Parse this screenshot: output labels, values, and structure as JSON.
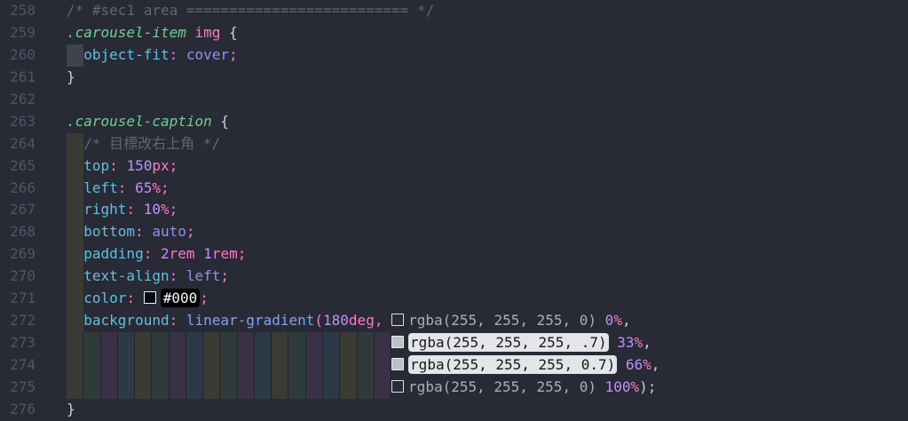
{
  "editor": {
    "rainbow_stripe_count": 19,
    "lines": [
      {
        "no": "258",
        "tokens": [
          {
            "t": "/* #sec1 area ========================== */",
            "c": "cm"
          }
        ]
      },
      {
        "no": "259",
        "tokens": [
          {
            "t": ".carousel-item",
            "c": "sel"
          },
          {
            "t": " "
          },
          {
            "t": "img",
            "c": "tag"
          },
          {
            "t": " "
          },
          {
            "t": "{",
            "c": "fg"
          }
        ]
      },
      {
        "no": "260",
        "bg": "tab",
        "tokens": [
          {
            "t": "  "
          },
          {
            "t": "object-fit",
            "c": "prop"
          },
          {
            "t": ":",
            "c": "pp"
          },
          {
            "t": " "
          },
          {
            "t": "cover",
            "c": "val"
          },
          {
            "t": ";",
            "c": "pp"
          }
        ]
      },
      {
        "no": "261",
        "tokens": [
          {
            "t": "}",
            "c": "fg"
          }
        ]
      },
      {
        "no": "262",
        "tokens": []
      },
      {
        "no": "263",
        "tokens": [
          {
            "t": ".carousel-caption",
            "c": "sel"
          },
          {
            "t": " "
          },
          {
            "t": "{",
            "c": "fg"
          }
        ]
      },
      {
        "no": "264",
        "bg": "l1",
        "tokens": [
          {
            "t": "  "
          },
          {
            "t": "/* 目標改右上角 */",
            "c": "cm"
          }
        ]
      },
      {
        "no": "265",
        "bg": "l1",
        "tokens": [
          {
            "t": "  "
          },
          {
            "t": "top",
            "c": "prop"
          },
          {
            "t": ":",
            "c": "pp"
          },
          {
            "t": " "
          },
          {
            "t": "150",
            "c": "num"
          },
          {
            "t": "px",
            "c": "unit"
          },
          {
            "t": ";",
            "c": "pp"
          }
        ]
      },
      {
        "no": "266",
        "bg": "l1",
        "tokens": [
          {
            "t": "  "
          },
          {
            "t": "left",
            "c": "prop"
          },
          {
            "t": ":",
            "c": "pp"
          },
          {
            "t": " "
          },
          {
            "t": "65",
            "c": "num"
          },
          {
            "t": "%",
            "c": "unit"
          },
          {
            "t": ";",
            "c": "pp"
          }
        ]
      },
      {
        "no": "267",
        "bg": "l1",
        "tokens": [
          {
            "t": "  "
          },
          {
            "t": "right",
            "c": "prop"
          },
          {
            "t": ":",
            "c": "pp"
          },
          {
            "t": " "
          },
          {
            "t": "10",
            "c": "num"
          },
          {
            "t": "%",
            "c": "unit"
          },
          {
            "t": ";",
            "c": "pp"
          }
        ]
      },
      {
        "no": "268",
        "bg": "l1",
        "tokens": [
          {
            "t": "  "
          },
          {
            "t": "bottom",
            "c": "prop"
          },
          {
            "t": ":",
            "c": "pp"
          },
          {
            "t": " "
          },
          {
            "t": "auto",
            "c": "val"
          },
          {
            "t": ";",
            "c": "pp"
          }
        ]
      },
      {
        "no": "269",
        "bg": "l1",
        "tokens": [
          {
            "t": "  "
          },
          {
            "t": "padding",
            "c": "prop"
          },
          {
            "t": ":",
            "c": "pp"
          },
          {
            "t": " "
          },
          {
            "t": "2",
            "c": "num"
          },
          {
            "t": "rem",
            "c": "unit"
          },
          {
            "t": " "
          },
          {
            "t": "1",
            "c": "num"
          },
          {
            "t": "rem",
            "c": "unit"
          },
          {
            "t": ";",
            "c": "pp"
          }
        ]
      },
      {
        "no": "270",
        "bg": "l1",
        "tokens": [
          {
            "t": "  "
          },
          {
            "t": "text-align",
            "c": "prop"
          },
          {
            "t": ":",
            "c": "pp"
          },
          {
            "t": " "
          },
          {
            "t": "left",
            "c": "val"
          },
          {
            "t": ";",
            "c": "pp"
          }
        ]
      },
      {
        "no": "271",
        "bg": "l1",
        "tokens": [
          {
            "t": "  "
          },
          {
            "t": "color",
            "c": "prop"
          },
          {
            "t": ":",
            "c": "pp"
          },
          {
            "t": " "
          },
          {
            "sw": "black"
          },
          {
            "t": "#000",
            "c": "bpill"
          },
          {
            "t": ";",
            "c": "pp"
          }
        ]
      },
      {
        "no": "272",
        "bg": "l1",
        "tokens": [
          {
            "t": "  "
          },
          {
            "t": "background",
            "c": "prop"
          },
          {
            "t": ":",
            "c": "pp"
          },
          {
            "t": " "
          },
          {
            "t": "linear-gradient",
            "c": "func"
          },
          {
            "t": "(",
            "c": "pp"
          },
          {
            "t": "180",
            "c": "num"
          },
          {
            "t": "deg",
            "c": "unit"
          },
          {
            "t": ",",
            "c": "pp"
          },
          {
            "t": " "
          },
          {
            "sw": "outline"
          },
          {
            "t": "rgba(255, 255, 255, 0)",
            "c": "gray"
          },
          {
            "t": " "
          },
          {
            "t": "0",
            "c": "num"
          },
          {
            "t": "%",
            "c": "unit"
          },
          {
            "t": ",",
            "c": "fg"
          }
        ]
      },
      {
        "no": "273",
        "bg": "rainbow",
        "tokens": [
          {
            "t": "                                      "
          },
          {
            "sw": "fill"
          },
          {
            "t": "rgba(255, 255, 255, .7)",
            "c": "pill"
          },
          {
            "t": " "
          },
          {
            "t": "33",
            "c": "num"
          },
          {
            "t": "%",
            "c": "unit"
          },
          {
            "t": ",",
            "c": "fg"
          }
        ]
      },
      {
        "no": "274",
        "bg": "rainbow",
        "tokens": [
          {
            "t": "                                      "
          },
          {
            "sw": "fill"
          },
          {
            "t": "rgba(255, 255, 255, 0.7)",
            "c": "pill"
          },
          {
            "t": " "
          },
          {
            "t": "66",
            "c": "num"
          },
          {
            "t": "%",
            "c": "unit"
          },
          {
            "t": ",",
            "c": "fg"
          }
        ]
      },
      {
        "no": "275",
        "bg": "rainbow",
        "tokens": [
          {
            "t": "                                      "
          },
          {
            "sw": "outline"
          },
          {
            "t": "rgba(255, 255, 255, 0)",
            "c": "gray"
          },
          {
            "t": " "
          },
          {
            "t": "100",
            "c": "num"
          },
          {
            "t": "%",
            "c": "unit"
          },
          {
            "t": ");",
            "c": "fg"
          }
        ]
      },
      {
        "no": "276",
        "tokens": [
          {
            "t": "}",
            "c": "fg"
          }
        ]
      }
    ]
  },
  "theme": {
    "colors": {
      "bg": "#282a35",
      "gutter": "#4e5665",
      "fg": "#ccd2dd",
      "cm": "#5e6773",
      "sel": "#6bd38f",
      "pink": "#ff79c6",
      "prop": "#5fc1e0",
      "func": "#7ba5f7",
      "num": "#bd93f9",
      "val": "#968df3",
      "gray": "#a9b1bd",
      "pill-bg": "#e4e5e8",
      "pill-fg": "#15171c",
      "bpill-bg": "#000000",
      "bpill-fg": "#fafafa",
      "ind-tab": "#3f434b",
      "ind-yellow": "#3a3b34",
      "ind-green": "#2f3b3a",
      "ind-magenta": "#3a3146",
      "ind-cyan": "#2c3946"
    }
  }
}
